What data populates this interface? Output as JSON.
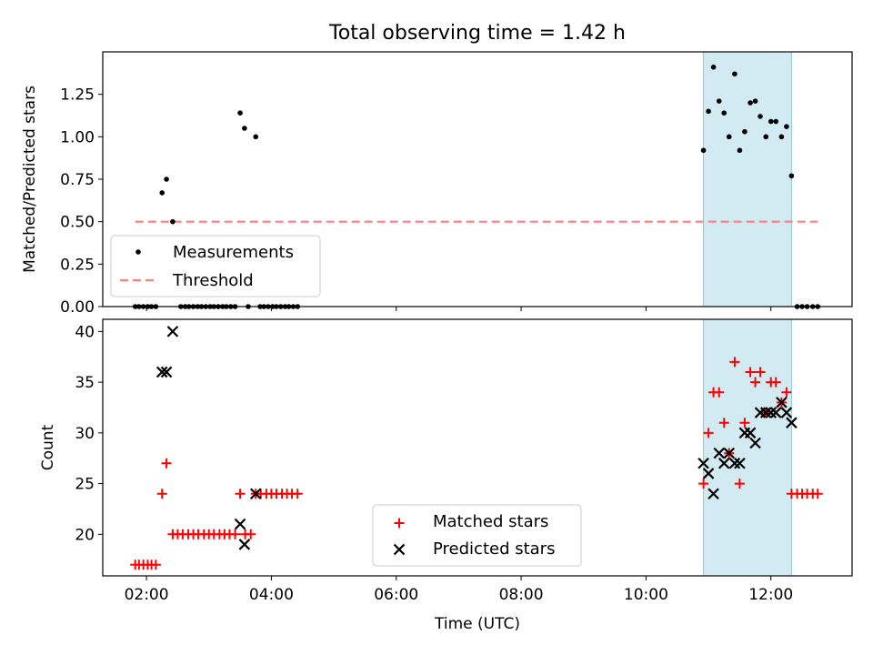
{
  "figure": {
    "title": "Total observing time = 1.42 h"
  },
  "chart_data": [
    {
      "type": "scatter",
      "ylabel": "Matched/Predicted stars",
      "xlim_hours": [
        1.3,
        13.3
      ],
      "ylim": [
        0,
        1.5
      ],
      "yticks": [
        0.0,
        0.25,
        0.5,
        0.75,
        1.0,
        1.25
      ],
      "ytick_labels": [
        "0.00",
        "0.25",
        "0.50",
        "0.75",
        "1.00",
        "1.25"
      ],
      "highlight_band_hours": [
        10.92,
        12.33
      ],
      "highlight_color": "#add8e6",
      "threshold": {
        "name": "Threshold",
        "y": 0.5,
        "x_range_hours": [
          1.82,
          12.75
        ],
        "color": "#ff7f7f"
      },
      "series": [
        {
          "name": "Measurements",
          "marker": "dot",
          "color": "#000000",
          "x_hours": [
            1.82,
            1.88,
            1.95,
            2.02,
            2.08,
            2.15,
            2.25,
            2.32,
            2.42,
            2.55,
            2.62,
            2.68,
            2.75,
            2.82,
            2.88,
            2.95,
            3.02,
            3.08,
            3.15,
            3.22,
            3.28,
            3.35,
            3.42,
            3.5,
            3.57,
            3.63,
            3.75,
            3.82,
            3.88,
            3.95,
            4.02,
            4.08,
            4.15,
            4.22,
            4.28,
            4.35,
            4.42,
            10.92,
            11.0,
            11.08,
            11.17,
            11.25,
            11.33,
            11.42,
            11.5,
            11.58,
            11.67,
            11.75,
            11.83,
            11.92,
            12.0,
            12.08,
            12.17,
            12.25,
            12.33,
            12.42,
            12.5,
            12.58,
            12.67,
            12.75
          ],
          "y": [
            0,
            0,
            0,
            0,
            0,
            0,
            0.67,
            0.75,
            0.5,
            0,
            0,
            0,
            0,
            0,
            0,
            0,
            0,
            0,
            0,
            0,
            0,
            0,
            0,
            1.14,
            1.05,
            0,
            1.0,
            0,
            0,
            0,
            0,
            0,
            0,
            0,
            0,
            0,
            0,
            0.92,
            1.15,
            1.41,
            1.21,
            1.14,
            1.0,
            1.37,
            0.92,
            1.03,
            1.2,
            1.21,
            1.12,
            1.0,
            1.09,
            1.09,
            1.0,
            1.06,
            0.77,
            0,
            0,
            0,
            0,
            0
          ]
        }
      ],
      "legend": {
        "placement": "lower-left"
      }
    },
    {
      "type": "scatter",
      "xlabel": "Time (UTC)",
      "ylabel": "Count",
      "xlim_hours": [
        1.3,
        13.3
      ],
      "ylim": [
        15.9,
        41.2
      ],
      "yticks": [
        20,
        25,
        30,
        35,
        40
      ],
      "ytick_labels": [
        "20",
        "25",
        "30",
        "35",
        "40"
      ],
      "xticks_hours": [
        2,
        4,
        6,
        8,
        10,
        12
      ],
      "xtick_labels": [
        "02:00",
        "04:00",
        "06:00",
        "08:00",
        "10:00",
        "12:00"
      ],
      "highlight_band_hours": [
        10.92,
        12.33
      ],
      "highlight_color": "#add8e6",
      "series": [
        {
          "name": "Matched stars",
          "marker": "plus",
          "color": "#ff0000",
          "x_hours": [
            1.82,
            1.88,
            1.95,
            2.02,
            2.08,
            2.15,
            2.25,
            2.32,
            2.42,
            2.5,
            2.58,
            2.67,
            2.75,
            2.83,
            2.92,
            3.0,
            3.08,
            3.17,
            3.25,
            3.33,
            3.42,
            3.5,
            3.58,
            3.67,
            3.75,
            3.83,
            3.92,
            4.0,
            4.08,
            4.17,
            4.25,
            4.33,
            4.42,
            10.92,
            11.0,
            11.08,
            11.17,
            11.25,
            11.33,
            11.42,
            11.5,
            11.58,
            11.67,
            11.75,
            11.83,
            11.92,
            12.0,
            12.08,
            12.17,
            12.25,
            12.33,
            12.42,
            12.5,
            12.58,
            12.67,
            12.75
          ],
          "y": [
            17,
            17,
            17,
            17,
            17,
            17,
            24,
            27,
            20,
            20,
            20,
            20,
            20,
            20,
            20,
            20,
            20,
            20,
            20,
            20,
            20,
            24,
            20,
            20,
            24,
            24,
            24,
            24,
            24,
            24,
            24,
            24,
            24,
            25,
            30,
            34,
            34,
            31,
            28,
            37,
            25,
            31,
            36,
            35,
            36,
            32,
            35,
            35,
            33,
            34,
            24,
            24,
            24,
            24,
            24,
            24
          ]
        },
        {
          "name": "Predicted stars",
          "marker": "x",
          "color": "#000000",
          "x_hours": [
            2.25,
            2.32,
            2.42,
            3.5,
            3.57,
            3.75,
            10.92,
            11.0,
            11.08,
            11.17,
            11.25,
            11.33,
            11.42,
            11.5,
            11.58,
            11.67,
            11.75,
            11.83,
            11.92,
            12.0,
            12.08,
            12.17,
            12.25,
            12.33
          ],
          "y": [
            36,
            36,
            40,
            21,
            19,
            24,
            27,
            26,
            24,
            28,
            27,
            28,
            27,
            27,
            30,
            30,
            29,
            32,
            32,
            32,
            32,
            33,
            32,
            31
          ]
        }
      ],
      "legend": {
        "placement": "lower-center"
      }
    }
  ]
}
